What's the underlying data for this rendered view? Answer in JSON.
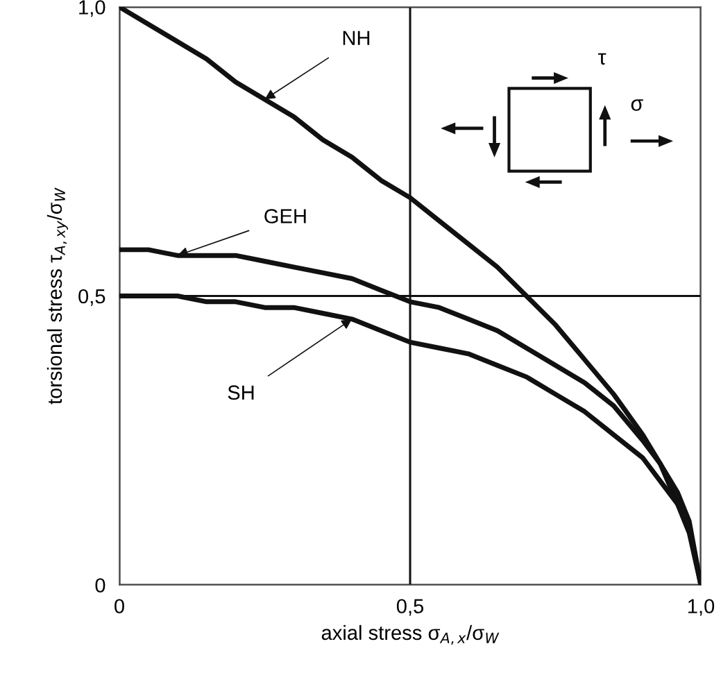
{
  "chart_data": {
    "type": "line",
    "xlabel": "axial stress σ$_{A,x}$/σ$_{W}$",
    "ylabel": "torsional stress τ$_{A,xy}$/σ$_{W}$",
    "x": [
      0,
      0.05,
      0.1,
      0.15,
      0.2,
      0.25,
      0.3,
      0.35,
      0.4,
      0.45,
      0.5,
      0.55,
      0.6,
      0.65,
      0.7,
      0.75,
      0.8,
      0.85,
      0.9,
      0.93,
      0.96,
      0.98,
      1
    ],
    "series": [
      {
        "color": "#111111",
        "values": [
          1.0,
          0.97,
          0.94,
          0.91,
          0.87,
          0.84,
          0.81,
          0.77,
          0.74,
          0.7,
          0.67,
          0.63,
          0.59,
          0.55,
          0.5,
          0.45,
          0.39,
          0.33,
          0.26,
          0.21,
          0.14,
          0.09,
          0
        ]
      },
      {
        "color": "#111111",
        "values": [
          0.58,
          0.58,
          0.57,
          0.57,
          0.57,
          0.56,
          0.55,
          0.54,
          0.53,
          0.51,
          0.49,
          0.48,
          0.46,
          0.44,
          0.41,
          0.38,
          0.35,
          0.31,
          0.25,
          0.21,
          0.16,
          0.11,
          0
        ]
      },
      {
        "color": "#111111",
        "values": [
          0.5,
          0.5,
          0.5,
          0.49,
          0.49,
          0.48,
          0.48,
          0.47,
          0.46,
          0.44,
          0.42,
          0.41,
          0.4,
          0.38,
          0.36,
          0.33,
          0.3,
          0.26,
          0.22,
          0.18,
          0.14,
          0.1,
          0
        ]
      }
    ],
    "xlim": [
      0,
      1
    ],
    "ylim": [
      0,
      1
    ],
    "xticks": [
      {
        "value": 0,
        "label": "0"
      },
      {
        "value": 0.5,
        "label": "0,5"
      },
      {
        "value": 1,
        "label": "1,0"
      }
    ],
    "yticks": [
      {
        "value": 0,
        "label": "0"
      },
      {
        "value": 0.5,
        "label": "0,5"
      },
      {
        "value": 1,
        "label": "1,0"
      }
    ],
    "grid": true,
    "line_style": "solid",
    "marker": "none",
    "annotations": [
      {
        "text": "NH",
        "x": 0.25,
        "y": 0.84
      },
      {
        "text": "GEH",
        "x": 0.1,
        "y": 0.57
      },
      {
        "text": "SH",
        "x": 0.4,
        "y": 0.46
      },
      "τ",
      "σ"
    ]
  }
}
